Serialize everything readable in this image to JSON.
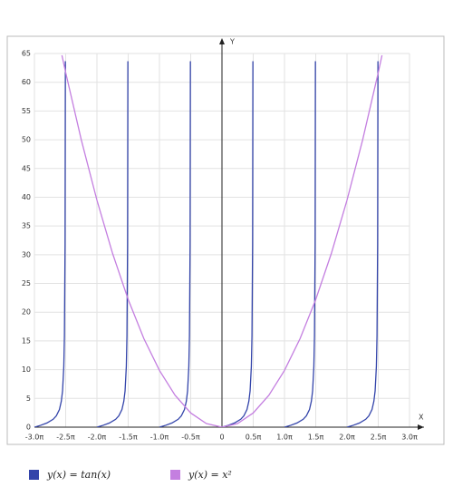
{
  "chart_data": {
    "type": "line",
    "x_axis_label": "X",
    "y_axis_label": "Y",
    "xlim": [
      -3,
      3
    ],
    "ylim": [
      0,
      65
    ],
    "xticks": [
      {
        "value": -3,
        "label": "-3.0π"
      },
      {
        "value": -2.5,
        "label": "-2.5π"
      },
      {
        "value": -2,
        "label": "-2.0π"
      },
      {
        "value": -1.5,
        "label": "-1.5π"
      },
      {
        "value": -1,
        "label": "-1.0π"
      },
      {
        "value": -0.5,
        "label": "-0.5π"
      },
      0,
      {
        "value": 0.5,
        "label": "0.5π"
      },
      {
        "value": 1,
        "label": "1.0π"
      },
      {
        "value": 1.5,
        "label": "1.5π"
      },
      {
        "value": 2,
        "label": "2.0π"
      },
      {
        "value": 2.5,
        "label": "2.5π"
      },
      {
        "value": 3,
        "label": "3.0π"
      }
    ],
    "yticks": [
      0,
      5,
      10,
      15,
      20,
      25,
      30,
      35,
      40,
      45,
      50,
      55,
      60,
      65
    ],
    "grid": true,
    "series": [
      {
        "name": "y(x) = tan(x)",
        "color": "#3344aa",
        "x": [
          -3,
          -2.9,
          -2.8,
          -2.7,
          -2.65,
          -2.6,
          -2.57,
          -2.55,
          -2.53,
          -2.52,
          -2.51,
          -2.505,
          -2.5,
          -2,
          -1.9,
          -1.8,
          -1.7,
          -1.65,
          -1.6,
          -1.57,
          -1.55,
          -1.53,
          -1.52,
          -1.51,
          -1.505,
          -1.5,
          -1,
          -0.9,
          -0.8,
          -0.7,
          -0.65,
          -0.6,
          -0.57,
          -0.55,
          -0.53,
          -0.52,
          -0.51,
          -0.505,
          -0.5,
          0,
          0.1,
          0.2,
          0.3,
          0.35,
          0.4,
          0.43,
          0.45,
          0.47,
          0.48,
          0.49,
          0.495,
          0.5,
          1,
          1.1,
          1.2,
          1.3,
          1.35,
          1.4,
          1.43,
          1.45,
          1.47,
          1.48,
          1.49,
          1.495,
          1.5,
          2,
          2.1,
          2.2,
          2.3,
          2.35,
          2.4,
          2.43,
          2.45,
          2.47,
          2.48,
          2.49,
          2.495
        ],
        "values": [
          0,
          0.325,
          0.727,
          1.376,
          1.963,
          3.078,
          4.511,
          6.314,
          10.58,
          15.89,
          31.82,
          63.66,
          null,
          0,
          0.325,
          0.727,
          1.376,
          1.963,
          3.078,
          4.511,
          6.314,
          10.58,
          15.89,
          31.82,
          63.66,
          null,
          0,
          0.325,
          0.727,
          1.376,
          1.963,
          3.078,
          4.511,
          6.314,
          10.58,
          15.89,
          31.82,
          63.66,
          null,
          0,
          0.325,
          0.727,
          1.376,
          1.963,
          3.078,
          4.511,
          6.314,
          10.58,
          15.89,
          31.82,
          63.66,
          null,
          0,
          0.325,
          0.727,
          1.376,
          1.963,
          3.078,
          4.511,
          6.314,
          10.58,
          15.89,
          31.82,
          63.66,
          null,
          0,
          0.325,
          0.727,
          1.376,
          1.963,
          3.078,
          4.511,
          6.314,
          10.58,
          15.89,
          31.82,
          63.66
        ]
      },
      {
        "name": "y(x) = x²",
        "color": "#c47fe0",
        "x": [
          -2.56,
          -2.5,
          -2.25,
          -2,
          -1.75,
          -1.5,
          -1.25,
          -1,
          -0.75,
          -0.5,
          -0.25,
          0,
          0.25,
          0.5,
          0.75,
          1,
          1.25,
          1.5,
          1.75,
          2,
          2.25,
          2.5,
          2.56
        ],
        "values": [
          64.68,
          61.69,
          49.96,
          39.48,
          30.23,
          22.21,
          15.42,
          9.87,
          5.55,
          2.47,
          0.62,
          0,
          0.62,
          2.47,
          5.55,
          9.87,
          15.42,
          22.21,
          30.23,
          39.48,
          49.96,
          61.69,
          64.68
        ]
      }
    ]
  }
}
